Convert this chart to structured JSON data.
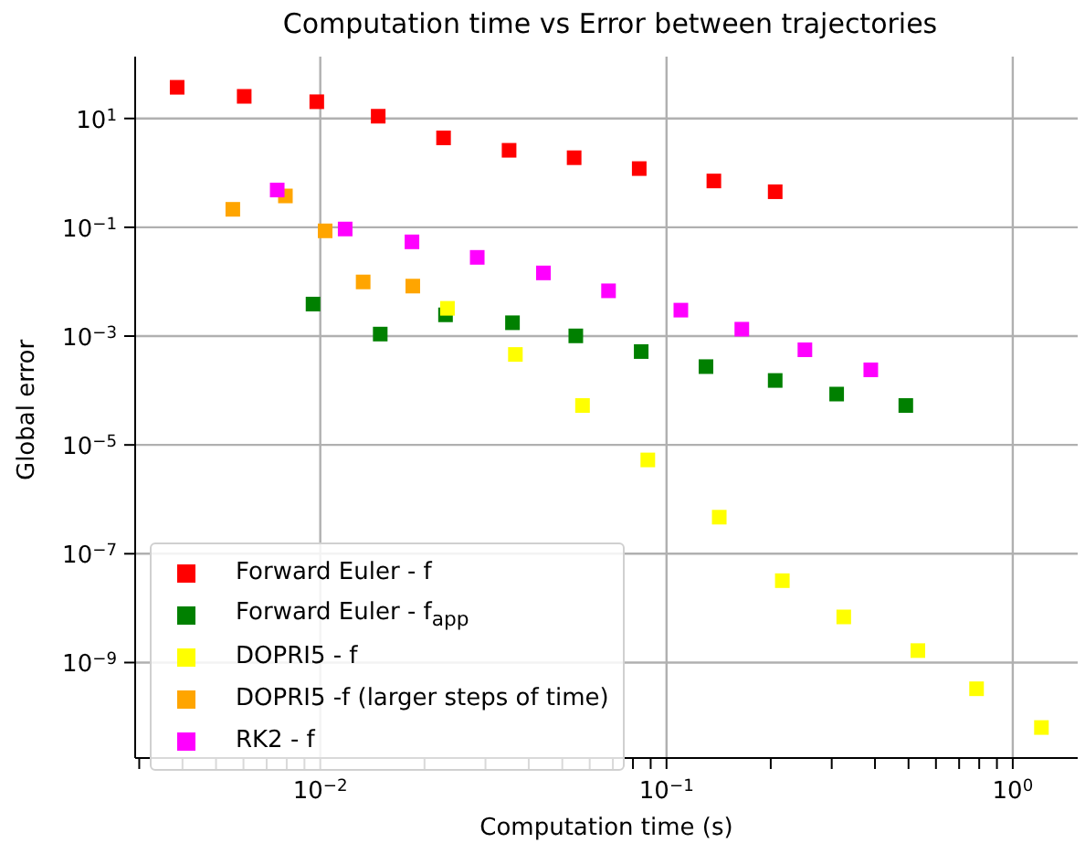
{
  "chart_data": {
    "type": "scatter",
    "title": "Computation time vs Error between trajectories",
    "xlabel": "Computation time (s)",
    "ylabel": "Global error",
    "log": "xy",
    "grid": true,
    "marker": "square",
    "legend": "bottom left",
    "xlim": [
      0.00292,
      1.54
    ],
    "ylim": [
      1.76e-11,
      137
    ],
    "xticks": [
      {
        "value": 0.003,
        "label": null
      },
      {
        "value": 0.004,
        "label": null
      },
      {
        "value": 0.005,
        "label": null
      },
      {
        "value": 0.006,
        "label": null
      },
      {
        "value": 0.007,
        "label": null
      },
      {
        "value": 0.008,
        "label": null
      },
      {
        "value": 0.009,
        "label": null
      },
      {
        "value": 0.01,
        "label": "10$^{−2}$"
      },
      {
        "value": 0.02,
        "label": null
      },
      {
        "value": 0.03,
        "label": null
      },
      {
        "value": 0.04,
        "label": null
      },
      {
        "value": 0.05,
        "label": null
      },
      {
        "value": 0.06,
        "label": null
      },
      {
        "value": 0.07,
        "label": null
      },
      {
        "value": 0.08,
        "label": null
      },
      {
        "value": 0.09,
        "label": null
      },
      {
        "value": 0.1,
        "label": "10$^{−1}$"
      },
      {
        "value": 0.2,
        "label": null
      },
      {
        "value": 0.3,
        "label": null
      },
      {
        "value": 0.4,
        "label": null
      },
      {
        "value": 0.5,
        "label": null
      },
      {
        "value": 0.6,
        "label": null
      },
      {
        "value": 0.7,
        "label": null
      },
      {
        "value": 0.8,
        "label": null
      },
      {
        "value": 0.9,
        "label": null
      },
      {
        "value": 1,
        "label": "10$^{0}$"
      }
    ],
    "yticks": [
      {
        "value": 1e-09,
        "label": "10$^{−9}$"
      },
      {
        "value": 1e-07,
        "label": "10$^{−7}$"
      },
      {
        "value": 1e-05,
        "label": "10$^{−5}$"
      },
      {
        "value": 0.001,
        "label": "10$^{−3}$"
      },
      {
        "value": 0.1,
        "label": "10$^{−1}$"
      },
      {
        "value": 10,
        "label": "10$^{1}$"
      }
    ],
    "series": [
      {
        "name": "Forward Euler - f",
        "color": "#ff0000",
        "x": [
          0.00386,
          0.00603,
          0.00977,
          0.0147,
          0.0227,
          0.0351,
          0.0541,
          0.0834,
          0.137,
          0.206
        ],
        "values": [
          37.4,
          25.5,
          20.3,
          11,
          4.4,
          2.6,
          1.9,
          1.2,
          0.71,
          0.45
        ]
      },
      {
        "name": "Forward Euler - f$_{app}$",
        "color": "#008000",
        "x": [
          0.00953,
          0.0149,
          0.023,
          0.0359,
          0.0547,
          0.0845,
          0.13,
          0.206,
          0.31,
          0.491
        ],
        "values": [
          0.00388,
          0.00109,
          0.00246,
          0.00176,
          0.00101,
          0.00052,
          0.000275,
          0.000153,
          8.6e-05,
          5.3e-05
        ]
      },
      {
        "name": "DOPRI5 - f",
        "color": "#ffff00",
        "x": [
          0.0233,
          0.0366,
          0.0572,
          0.0883,
          0.142,
          0.216,
          0.325,
          0.532,
          0.786,
          1.21
        ],
        "values": [
          0.00324,
          0.00046,
          5.3e-05,
          5.3e-06,
          4.7e-07,
          3.2e-08,
          6.9e-09,
          1.66e-09,
          3.3e-10,
          6.4e-11
        ]
      },
      {
        "name": "DOPRI5 -f (larger steps of time)",
        "color": "#ffa500",
        "x": [
          0.00559,
          0.00793,
          0.01033,
          0.0133,
          0.0185
        ],
        "values": [
          0.214,
          0.377,
          0.086,
          0.0099,
          0.0083
        ]
      },
      {
        "name": "RK2 - f",
        "color": "#ff00ff",
        "x": [
          0.00751,
          0.0118,
          0.0184,
          0.0284,
          0.0441,
          0.068,
          0.11,
          0.165,
          0.251,
          0.389
        ],
        "values": [
          0.484,
          0.093,
          0.054,
          0.028,
          0.0145,
          0.0068,
          0.003,
          0.00134,
          0.00056,
          0.00024
        ]
      }
    ]
  }
}
